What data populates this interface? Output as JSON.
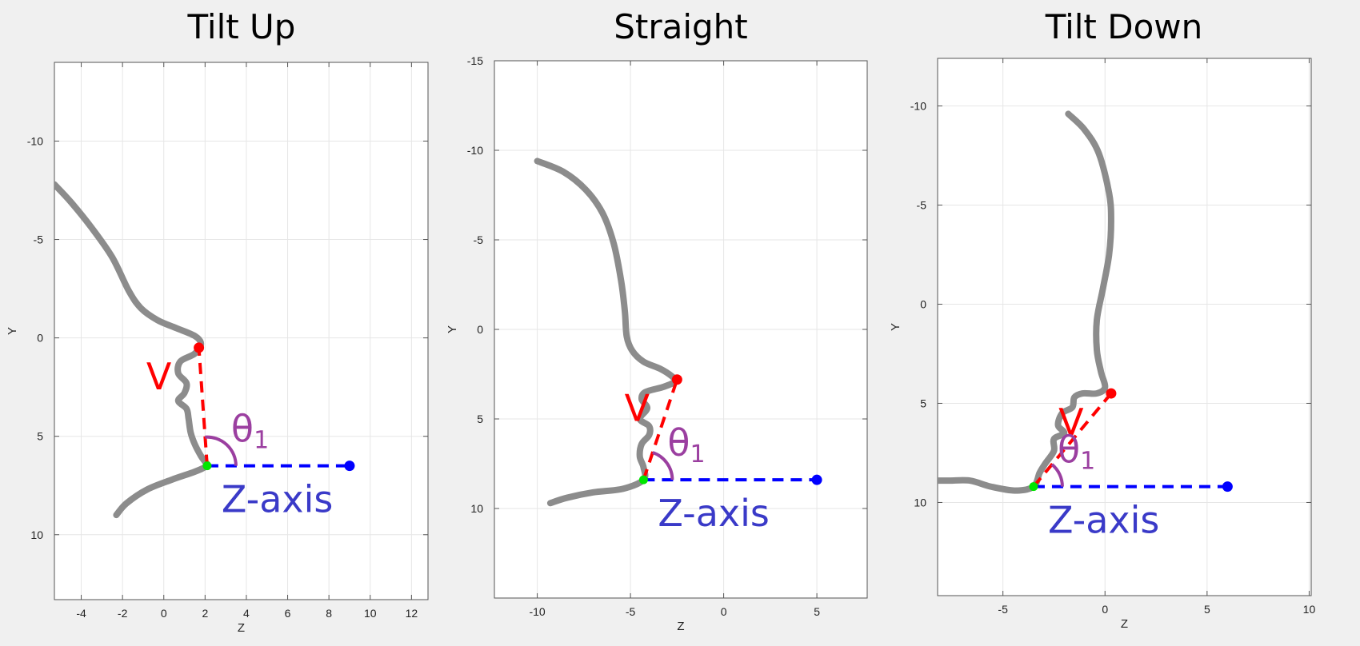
{
  "figure": {
    "background": "#f0f0f0",
    "plot_bg": "#ffffff",
    "grid_color": "#e6e6e6",
    "profile_color": "#8c8c8c",
    "vector_color": "#ff0000",
    "axis_color": "#0000ff",
    "angle_color": "#9b3fa0",
    "origin_color": "#00e600"
  },
  "chart_data": [
    {
      "type": "line",
      "title": "Tilt Up",
      "xlabel": "Z",
      "ylabel": "Y",
      "xlim": [
        -5.3,
        12.8
      ],
      "ylim": [
        13.3,
        -14
      ],
      "y_reversed": true,
      "xticks": [
        -4,
        -2,
        0,
        2,
        4,
        6,
        8,
        10,
        12
      ],
      "yticks": [
        -10,
        -5,
        0,
        5,
        10
      ],
      "grid": true,
      "profile": [
        [
          -5.3,
          -7.8
        ],
        [
          -4.5,
          -6.9
        ],
        [
          -3.5,
          -5.6
        ],
        [
          -2.5,
          -4.1
        ],
        [
          -1.7,
          -2.4
        ],
        [
          -1.1,
          -1.5
        ],
        [
          -0.3,
          -0.9
        ],
        [
          0.6,
          -0.5
        ],
        [
          1.5,
          -0.1
        ],
        [
          1.8,
          0.3
        ],
        [
          1.5,
          0.8
        ],
        [
          0.8,
          1.2
        ],
        [
          0.7,
          1.8
        ],
        [
          1.1,
          2.3
        ],
        [
          1.0,
          2.8
        ],
        [
          0.7,
          3.2
        ],
        [
          1.1,
          3.6
        ],
        [
          1.2,
          4.1
        ],
        [
          1.3,
          4.8
        ],
        [
          1.5,
          5.4
        ],
        [
          1.8,
          6.0
        ],
        [
          2.0,
          6.3
        ],
        [
          2.1,
          6.5
        ],
        [
          1.5,
          6.8
        ],
        [
          0.4,
          7.2
        ],
        [
          -0.8,
          7.7
        ],
        [
          -1.8,
          8.4
        ],
        [
          -2.3,
          9.0
        ]
      ],
      "v_point": [
        1.7,
        0.5
      ],
      "origin": [
        2.1,
        6.5
      ],
      "axis_end": [
        9.0,
        6.5
      ],
      "vector_label": "V",
      "angle_label": "θ",
      "angle_subscript": "1",
      "axis_label": "Z-axis"
    },
    {
      "type": "line",
      "title": "Straight",
      "xlabel": "Z",
      "ylabel": "Y",
      "xlim": [
        -12.3,
        7.7
      ],
      "ylim": [
        15,
        -15
      ],
      "y_reversed": true,
      "xticks": [
        -10,
        -5,
        0,
        5
      ],
      "yticks": [
        -15,
        -10,
        -5,
        0,
        5,
        10
      ],
      "grid": true,
      "profile": [
        [
          -10.0,
          -9.4
        ],
        [
          -8.6,
          -8.8
        ],
        [
          -7.4,
          -7.8
        ],
        [
          -6.5,
          -6.5
        ],
        [
          -5.9,
          -4.8
        ],
        [
          -5.5,
          -2.7
        ],
        [
          -5.3,
          -1.0
        ],
        [
          -5.2,
          0.4
        ],
        [
          -4.9,
          1.2
        ],
        [
          -4.3,
          1.8
        ],
        [
          -3.4,
          2.2
        ],
        [
          -2.8,
          2.6
        ],
        [
          -2.6,
          2.9
        ],
        [
          -3.2,
          3.2
        ],
        [
          -4.2,
          3.5
        ],
        [
          -4.4,
          3.9
        ],
        [
          -4.1,
          4.4
        ],
        [
          -4.5,
          5.0
        ],
        [
          -4.0,
          5.4
        ],
        [
          -4.0,
          5.9
        ],
        [
          -4.4,
          6.4
        ],
        [
          -4.5,
          7.1
        ],
        [
          -4.3,
          7.7
        ],
        [
          -4.3,
          8.4
        ],
        [
          -5.4,
          8.9
        ],
        [
          -7.0,
          9.1
        ],
        [
          -8.4,
          9.4
        ],
        [
          -9.3,
          9.7
        ]
      ],
      "v_point": [
        -2.5,
        2.8
      ],
      "origin": [
        -4.3,
        8.4
      ],
      "axis_end": [
        5.0,
        8.4
      ],
      "vector_label": "V",
      "angle_label": "θ",
      "angle_subscript": "1",
      "axis_label": "Z-axis"
    },
    {
      "type": "line",
      "title": "Tilt Down",
      "xlabel": "Z",
      "ylabel": "Y",
      "xlim": [
        -8.2,
        10.1
      ],
      "ylim": [
        14.7,
        -12.4
      ],
      "y_reversed": true,
      "xticks": [
        -5,
        0,
        5,
        10
      ],
      "yticks": [
        -10,
        -5,
        0,
        5,
        10
      ],
      "grid": true,
      "profile": [
        [
          -1.8,
          -9.6
        ],
        [
          -1.0,
          -8.8
        ],
        [
          -0.3,
          -7.6
        ],
        [
          0.2,
          -5.6
        ],
        [
          0.3,
          -4.2
        ],
        [
          0.2,
          -2.5
        ],
        [
          -0.1,
          -0.8
        ],
        [
          -0.4,
          0.8
        ],
        [
          -0.4,
          2.3
        ],
        [
          -0.2,
          3.4
        ],
        [
          0.0,
          4.2
        ],
        [
          -0.4,
          4.5
        ],
        [
          -1.1,
          4.5
        ],
        [
          -1.5,
          4.7
        ],
        [
          -1.6,
          5.2
        ],
        [
          -2.1,
          5.5
        ],
        [
          -2.3,
          6.1
        ],
        [
          -2.0,
          6.5
        ],
        [
          -2.5,
          6.8
        ],
        [
          -2.5,
          7.4
        ],
        [
          -2.9,
          8.0
        ],
        [
          -3.2,
          8.5
        ],
        [
          -3.5,
          9.2
        ],
        [
          -4.4,
          9.4
        ],
        [
          -5.6,
          9.2
        ],
        [
          -6.6,
          8.9
        ],
        [
          -7.6,
          8.9
        ],
        [
          -8.2,
          8.9
        ]
      ],
      "v_point": [
        0.3,
        4.5
      ],
      "origin": [
        -3.5,
        9.2
      ],
      "axis_end": [
        6.0,
        9.2
      ],
      "vector_label": "V",
      "angle_label": "θ",
      "angle_subscript": "1",
      "axis_label": "Z-axis"
    }
  ]
}
